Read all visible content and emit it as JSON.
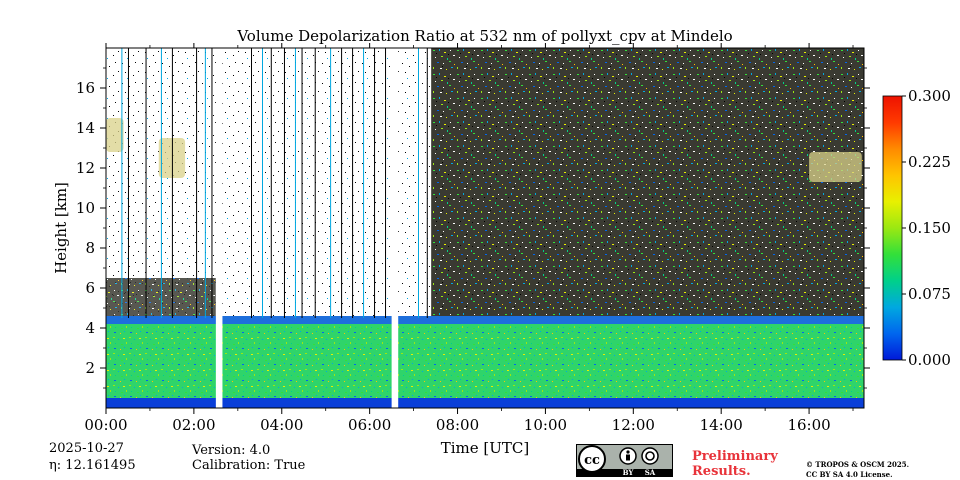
{
  "chart_data": {
    "type": "heatmap",
    "title": "Volume Depolarization Ratio at 532 nm of pollyxt_cpv at Mindelo",
    "xlabel": "Time [UTC]",
    "ylabel": "Height [km]",
    "xlim": [
      0,
      17.25
    ],
    "ylim": [
      0,
      18
    ],
    "x_ticks": [
      0,
      2,
      4,
      6,
      8,
      10,
      12,
      14,
      16
    ],
    "x_tick_labels": [
      "00:00",
      "02:00",
      "04:00",
      "06:00",
      "08:00",
      "10:00",
      "12:00",
      "14:00",
      "16:00"
    ],
    "y_ticks": [
      2,
      4,
      6,
      8,
      10,
      12,
      14,
      16
    ],
    "y_tick_labels": [
      "2",
      "4",
      "6",
      "8",
      "10",
      "12",
      "14",
      "16"
    ],
    "colorbar": {
      "range": [
        0.0,
        0.3
      ],
      "ticks": [
        0.0,
        0.075,
        0.15,
        0.225,
        0.3
      ],
      "tick_labels": [
        "0.000",
        "0.075",
        "0.150",
        "0.225",
        "0.300"
      ],
      "colormap": [
        "#0019d9",
        "#0066ee",
        "#00a8e0",
        "#00d08a",
        "#33e03a",
        "#9be812",
        "#e8f000",
        "#ffc400",
        "#ff8a00",
        "#ff3a00",
        "#ee1200"
      ]
    },
    "layers": [
      {
        "height_range_km": [
          0,
          0.5
        ],
        "ratio": 0.01
      },
      {
        "height_range_km": [
          0.5,
          4.5
        ],
        "ratio": 0.07
      },
      {
        "height_range_km": [
          4.5,
          18
        ],
        "ratio": "noise"
      }
    ],
    "data_gaps_utc": [
      [
        2.5,
        2.65
      ],
      [
        6.5,
        6.65
      ]
    ],
    "cirrus_patches": [
      {
        "time_utc": [
          1.2,
          1.8
        ],
        "height_km": [
          11.5,
          13.5
        ],
        "ratio": 0.18
      },
      {
        "time_utc": [
          16.0,
          17.2
        ],
        "height_km": [
          11.3,
          12.8
        ],
        "ratio": 0.2
      },
      {
        "time_utc": [
          0.0,
          0.4
        ],
        "height_km": [
          12.8,
          14.5
        ],
        "ratio": 0.17
      }
    ]
  },
  "info": {
    "date": "2025-10-27",
    "eta": "η: 12.161495",
    "version": "Version: 4.0",
    "calibration": "Calibration: True"
  },
  "license": {
    "preliminary_line1": "Preliminary",
    "preliminary_line2": "Results.",
    "copyright_line1": "© TROPOS & OSCM 2025.",
    "copyright_line2": "CC BY SA 4.0 License.",
    "badge_cc": "cc",
    "badge_by": "BY",
    "badge_sa": "SA"
  }
}
